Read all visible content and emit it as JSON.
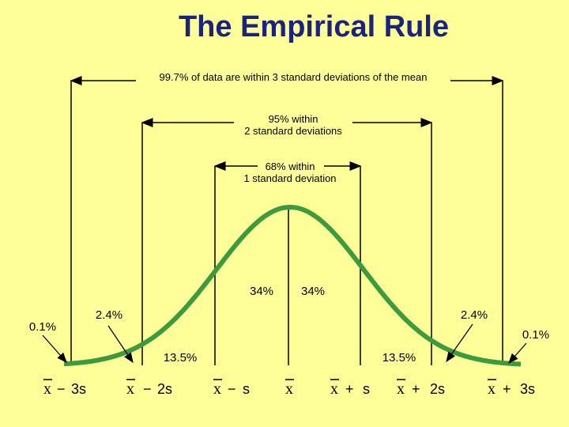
{
  "title": "The Empirical Rule",
  "brackets": {
    "three_sd": "99.7% of data are within 3 standard deviations of the mean",
    "two_sd_line1": "95% within",
    "two_sd_line2": "2 standard deviations",
    "one_sd_line1": "68% within",
    "one_sd_line2": "1 standard deviation"
  },
  "regions": {
    "center_left": "34%",
    "center_right": "34%",
    "mid_left": "13.5%",
    "mid_right": "13.5%",
    "outer_left": "2.4%",
    "outer_right": "2.4%",
    "tail_left": "0.1%",
    "tail_right": "0.1%"
  },
  "axis_labels": [
    {
      "var": "x",
      "op": "−",
      "term": "3s"
    },
    {
      "var": "x",
      "op": "−",
      "term": "2s"
    },
    {
      "var": "x",
      "op": "−",
      "term": "s"
    },
    {
      "var": "x",
      "op": "",
      "term": ""
    },
    {
      "var": "x",
      "op": "+",
      "term": "s"
    },
    {
      "var": "x",
      "op": "+",
      "term": "2s"
    },
    {
      "var": "x",
      "op": "+",
      "term": "3s"
    }
  ],
  "colors": {
    "background": "#ffff99",
    "title": "#1a237e",
    "curve": "#3d9a3d"
  }
}
